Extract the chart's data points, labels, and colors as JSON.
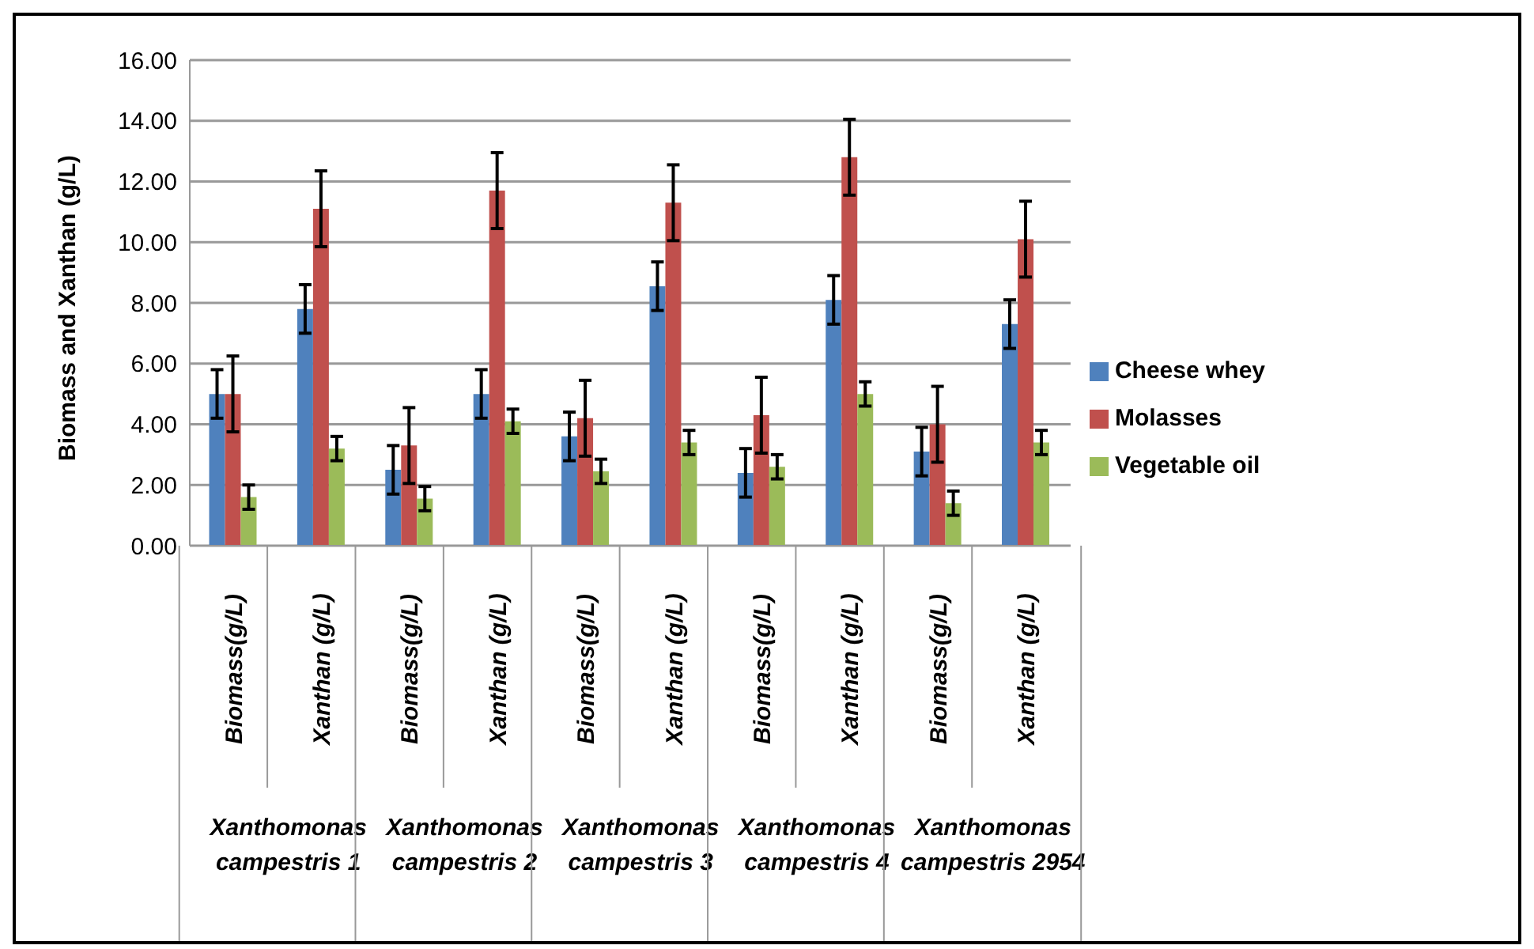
{
  "chart_data": {
    "type": "bar",
    "ylabel": "Biomass and Xanthan  (g/L)",
    "categories": [
      "Biomass(g/L)",
      "Xanthan (g/L)",
      "Biomass(g/L)",
      "Xanthan (g/L)",
      "Biomass(g/L)",
      "Xanthan (g/L)",
      "Biomass(g/L)",
      "Xanthan (g/L)",
      "Biomass(g/L)",
      "Xanthan (g/L)"
    ],
    "series": [
      {
        "name": "Cheese whey",
        "color": "#4f81bd",
        "values": [
          5.0,
          7.8,
          2.5,
          5.0,
          3.6,
          8.55,
          2.4,
          8.1,
          3.1,
          7.3
        ],
        "errors": [
          0.8,
          0.8,
          0.8,
          0.8,
          0.8,
          0.8,
          0.8,
          0.8,
          0.8,
          0.8
        ]
      },
      {
        "name": "Molasses",
        "color": "#c0504d",
        "values": [
          5.0,
          11.1,
          3.3,
          11.7,
          4.2,
          11.3,
          4.3,
          12.8,
          4.0,
          10.1
        ],
        "errors": [
          1.25,
          1.25,
          1.25,
          1.25,
          1.25,
          1.25,
          1.25,
          1.25,
          1.25,
          1.25
        ]
      },
      {
        "name": "Vegetable oil",
        "color": "#9bbb59",
        "values": [
          1.6,
          3.2,
          1.55,
          4.1,
          2.45,
          3.4,
          2.6,
          5.0,
          1.4,
          3.4
        ],
        "errors": [
          0.4,
          0.4,
          0.4,
          0.4,
          0.4,
          0.4,
          0.4,
          0.4,
          0.4,
          0.4
        ]
      }
    ],
    "annotations": [
      "Xanthomonas campestris 1",
      "Xanthomonas campestris 2",
      "Xanthomonas campestris 3",
      "Xanthomonas campestris 4",
      "Xanthomonas campestris 2954"
    ],
    "ylim": [
      0,
      16
    ],
    "yticks": [
      {
        "value": 0,
        "label": "0.00"
      },
      {
        "value": 2,
        "label": "2.00"
      },
      {
        "value": 4,
        "label": "4.00"
      },
      {
        "value": 6,
        "label": "6.00"
      },
      {
        "value": 8,
        "label": "8.00"
      },
      {
        "value": 10,
        "label": "10.00"
      },
      {
        "value": 12,
        "label": "12.00"
      },
      {
        "value": 14,
        "label": "14.00"
      },
      {
        "value": 16,
        "label": "16.00"
      }
    ],
    "grid": "y",
    "legend": "right"
  }
}
